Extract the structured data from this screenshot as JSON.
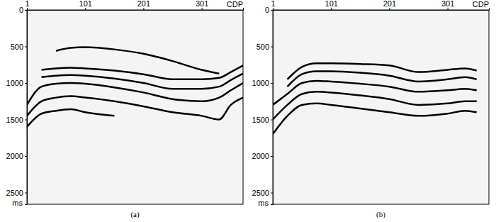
{
  "chart_data": [
    {
      "type": "line",
      "title": "(a)",
      "x_label": "CDP",
      "y_label": "ms",
      "x": [
        1,
        26,
        51,
        76,
        101,
        151,
        201,
        251,
        301,
        331,
        351,
        372
      ],
      "xlim": [
        1,
        372
      ],
      "xticks": [
        1,
        101,
        201,
        301
      ],
      "ylim": [
        0,
        2660
      ],
      "yticks": [
        0,
        500,
        1000,
        1500,
        2000,
        2500
      ],
      "tick_labels": true,
      "series": [
        {
          "color": "#000000",
          "values": [
            null,
            null,
            560,
            520,
            510,
            540,
            600,
            700,
            820,
            870,
            null,
            null
          ]
        },
        {
          "color": "#000000",
          "values": [
            null,
            820,
            800,
            790,
            800,
            830,
            880,
            950,
            950,
            930,
            850,
            760
          ]
        },
        {
          "color": "#000000",
          "values": [
            null,
            920,
            900,
            890,
            900,
            940,
            1000,
            1080,
            1080,
            1050,
            960,
            870
          ]
        },
        {
          "color": "#000000",
          "values": [
            1300,
            1050,
            1010,
            1000,
            1010,
            1060,
            1130,
            1220,
            1250,
            1200,
            1100,
            1000
          ]
        },
        {
          "color": "#000000",
          "values": [
            1450,
            1250,
            1200,
            1180,
            1200,
            1250,
            1320,
            1400,
            1450,
            1500,
            1300,
            1200
          ]
        },
        {
          "color": "#000000",
          "values": [
            1600,
            1420,
            1380,
            1360,
            1400,
            1450,
            null,
            null,
            null,
            null,
            null,
            null
          ]
        }
      ]
    },
    {
      "type": "line",
      "title": "(b)",
      "x_label": "CDP",
      "y_label": "ms",
      "x": [
        1,
        26,
        51,
        76,
        101,
        151,
        201,
        251,
        301,
        331,
        351,
        372
      ],
      "xlim": [
        1,
        372
      ],
      "xticks": [
        1,
        101,
        201,
        301
      ],
      "ylim": [
        0,
        2660
      ],
      "yticks": [
        0,
        500,
        1000,
        1500,
        2000,
        2500
      ],
      "tick_labels": true,
      "series": [
        {
          "color": "#000000",
          "values": [
            null,
            950,
            780,
            730,
            730,
            740,
            760,
            850,
            820,
            800,
            830,
            null
          ]
        },
        {
          "color": "#000000",
          "values": [
            null,
            1050,
            880,
            840,
            840,
            860,
            900,
            980,
            950,
            920,
            950,
            null
          ]
        },
        {
          "color": "#000000",
          "values": [
            1300,
            1150,
            1000,
            970,
            980,
            1010,
            1050,
            1120,
            1100,
            1080,
            1100,
            null
          ]
        },
        {
          "color": "#000000",
          "values": [
            1500,
            1300,
            1150,
            1120,
            1130,
            1170,
            1220,
            1300,
            1280,
            1250,
            1250,
            null
          ]
        },
        {
          "color": "#000000",
          "values": [
            1700,
            1450,
            1300,
            1280,
            1300,
            1350,
            1400,
            1450,
            1420,
            1380,
            1400,
            null
          ]
        }
      ]
    }
  ]
}
